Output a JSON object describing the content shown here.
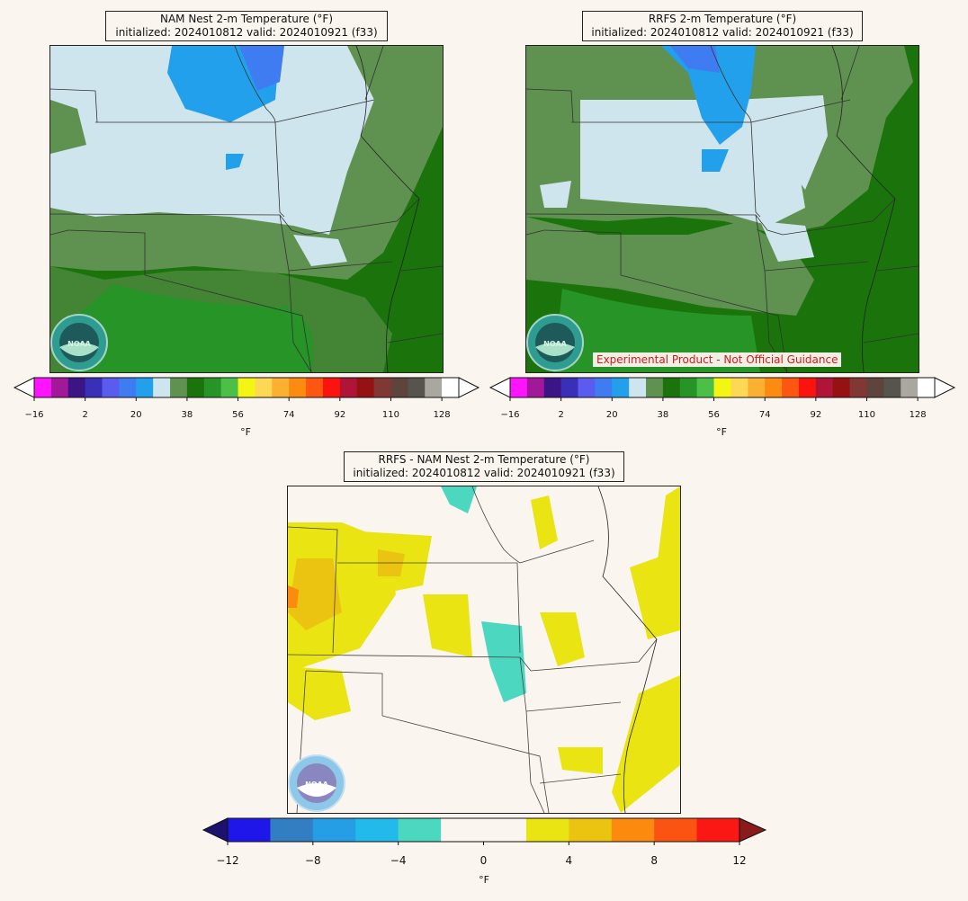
{
  "panels": [
    {
      "title": "NAM Nest 2-m Temperature (°F)",
      "subtitle": "initialized: 2024010812 valid: 2024010921 (f33)"
    },
    {
      "title": "RRFS 2-m Temperature (°F)",
      "subtitle": "initialized: 2024010812 valid: 2024010921 (f33)",
      "disclaimer": "Experimental Product - Not Official Guidance"
    },
    {
      "title": "RRFS - NAM Nest 2-m Temperature (°F)",
      "subtitle": "initialized: 2024010812 valid: 2024010921 (f33)"
    }
  ],
  "logo_text": "NOAA",
  "temp_colorbar": {
    "unit": "°F",
    "ticks": [
      "−16",
      "2",
      "20",
      "38",
      "56",
      "74",
      "92",
      "110",
      "128"
    ],
    "colors": [
      "#ff14ff",
      "#a3189a",
      "#3b1585",
      "#3a2fb8",
      "#5a5cf0",
      "#3f7cf2",
      "#22a0ec",
      "#cde5ee",
      "#5f9150",
      "#1b730b",
      "#279428",
      "#4cbf48",
      "#f5f514",
      "#fcd855",
      "#fbb032",
      "#fb8b11",
      "#fb5713",
      "#fb140e",
      "#b01436",
      "#961212",
      "#813834",
      "#5f433d",
      "#57534d",
      "#aaa7a0",
      "#ffffff"
    ]
  },
  "diff_colorbar": {
    "unit": "°F",
    "ticks": [
      "−12",
      "−8",
      "−4",
      "0",
      "4",
      "8",
      "12"
    ],
    "colors": [
      "#1f16ea",
      "#317ec2",
      "#269ee6",
      "#22baea",
      "#4cd8c0",
      "#faf5ee",
      "#faf5ee",
      "#e9e412",
      "#ebc412",
      "#fb8a0f",
      "#fb5312",
      "#fb1814"
    ],
    "under_color": "#1b1270",
    "over_color": "#8b1a1a"
  },
  "map_colors": {
    "light_blue": "#cfe5ee",
    "blue": "#22a0ec",
    "blue_dark": "#3f7cf2",
    "green_light": "#5f9150",
    "green_dark": "#1b730b",
    "green_mid": "#279428",
    "yellow": "#e9e412",
    "gold": "#ebc412",
    "orange": "#fb8a0f",
    "teal": "#4cd8c0"
  }
}
